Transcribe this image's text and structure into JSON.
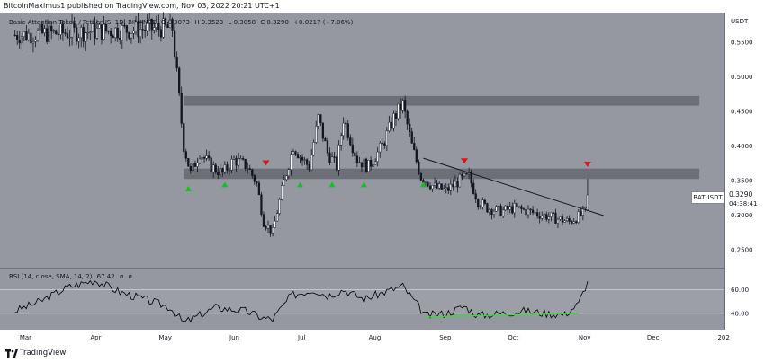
{
  "header": {
    "publish_line": "BitcoinMaximus1 published on TradingView.com, Nov 03, 2022 20:21 UTC+1"
  },
  "legend": {
    "symbol": "Basic Attention Token / TetherUS, 1D, BINANCE",
    "o": "O 0.3073",
    "h": "H 0.3523",
    "l": "L 0.3058",
    "c": "C 0.3290",
    "chg": "+0.0217 (+7.06%)"
  },
  "rsi_legend": {
    "name": "RSI (14, close, SMA, 14, 2)",
    "v1": "67.42",
    "v2": "ø",
    "v3": "ø"
  },
  "axis": {
    "currency": "USDT",
    "price_labels": [
      "0.5500",
      "0.5000",
      "0.4500",
      "0.4000",
      "0.3500",
      "0.3000",
      "0.2500"
    ],
    "rsi_labels": [
      "60.00",
      "40.00"
    ],
    "month_labels": [
      "Mar",
      "Apr",
      "May",
      "Jun",
      "Jul",
      "Aug",
      "Sep",
      "Oct",
      "Nov",
      "Dec",
      "202"
    ]
  },
  "price_tag": {
    "symbol": "BATUSDT",
    "last": "0.3290",
    "countdown": "04:38:41"
  },
  "footer": {
    "brand": "TradingView"
  },
  "colors": {
    "background": "#9598a1",
    "candle": "#131722",
    "zone": "#5f6168",
    "arrow_down": "#d8151b",
    "arrow_up": "#10c21f",
    "rsi_line": "#000000",
    "divergence": "#2fe62a"
  },
  "chart_data": {
    "type": "candlestick",
    "title": "Basic Attention Token / TetherUS, 1D, BINANCE",
    "price_ylim": [
      0.225,
      0.59
    ],
    "rsi_ylim": [
      27,
      77
    ],
    "resistance_zones": [
      [
        0.458,
        0.472
      ],
      [
        0.352,
        0.367
      ]
    ],
    "descending_trendline": [
      {
        "date": "2022-08-23",
        "price": 0.382
      },
      {
        "date": "2022-11-10",
        "price": 0.299
      }
    ],
    "markers_down": [
      {
        "date": "2022-06-15",
        "price": 0.375
      },
      {
        "date": "2022-09-10",
        "price": 0.378
      },
      {
        "date": "2022-11-03",
        "price": 0.373
      }
    ],
    "markers_up": [
      {
        "date": "2022-05-12",
        "price": 0.338
      },
      {
        "date": "2022-05-28",
        "price": 0.344
      },
      {
        "date": "2022-06-30",
        "price": 0.344
      },
      {
        "date": "2022-07-14",
        "price": 0.344
      },
      {
        "date": "2022-07-28",
        "price": 0.344
      },
      {
        "date": "2022-08-23",
        "price": 0.344
      }
    ],
    "price_anchors": [
      [
        "2022-02-25",
        0.56
      ],
      [
        "2022-04-30",
        0.57
      ],
      [
        "2022-05-05",
        0.57
      ],
      [
        "2022-05-10",
        0.4
      ],
      [
        "2022-05-13",
        0.36
      ],
      [
        "2022-05-17",
        0.39
      ],
      [
        "2022-05-22",
        0.37
      ],
      [
        "2022-05-27",
        0.36
      ],
      [
        "2022-06-01",
        0.38
      ],
      [
        "2022-06-07",
        0.37
      ],
      [
        "2022-06-11",
        0.345
      ],
      [
        "2022-06-14",
        0.29
      ],
      [
        "2022-06-18",
        0.275
      ],
      [
        "2022-06-22",
        0.335
      ],
      [
        "2022-06-27",
        0.4
      ],
      [
        "2022-07-01",
        0.38
      ],
      [
        "2022-07-04",
        0.37
      ],
      [
        "2022-07-08",
        0.44
      ],
      [
        "2022-07-12",
        0.39
      ],
      [
        "2022-07-16",
        0.37
      ],
      [
        "2022-07-19",
        0.44
      ],
      [
        "2022-07-25",
        0.38
      ],
      [
        "2022-07-30",
        0.37
      ],
      [
        "2022-08-05",
        0.4
      ],
      [
        "2022-08-10",
        0.44
      ],
      [
        "2022-08-14",
        0.46
      ],
      [
        "2022-08-18",
        0.4
      ],
      [
        "2022-08-22",
        0.355
      ],
      [
        "2022-08-28",
        0.34
      ],
      [
        "2022-09-02",
        0.335
      ],
      [
        "2022-09-08",
        0.35
      ],
      [
        "2022-09-12",
        0.355
      ],
      [
        "2022-09-16",
        0.32
      ],
      [
        "2022-09-20",
        0.31
      ],
      [
        "2022-09-26",
        0.305
      ],
      [
        "2022-10-02",
        0.31
      ],
      [
        "2022-10-08",
        0.305
      ],
      [
        "2022-10-14",
        0.3
      ],
      [
        "2022-10-20",
        0.295
      ],
      [
        "2022-10-26",
        0.29
      ],
      [
        "2022-10-31",
        0.3
      ],
      [
        "2022-11-02",
        0.305
      ],
      [
        "2022-11-03",
        0.329
      ]
    ],
    "rsi_anchors": [
      [
        "2022-02-25",
        42
      ],
      [
        "2022-03-08",
        50
      ],
      [
        "2022-03-20",
        62
      ],
      [
        "2022-04-01",
        68
      ],
      [
        "2022-04-12",
        58
      ],
      [
        "2022-04-26",
        50
      ],
      [
        "2022-05-04",
        45
      ],
      [
        "2022-05-10",
        32
      ],
      [
        "2022-05-24",
        45
      ],
      [
        "2022-06-06",
        42
      ],
      [
        "2022-06-14",
        36
      ],
      [
        "2022-06-18",
        35
      ],
      [
        "2022-06-26",
        55
      ],
      [
        "2022-07-06",
        60
      ],
      [
        "2022-07-12",
        55
      ],
      [
        "2022-07-19",
        60
      ],
      [
        "2022-07-28",
        52
      ],
      [
        "2022-08-06",
        58
      ],
      [
        "2022-08-14",
        63
      ],
      [
        "2022-08-20",
        48
      ],
      [
        "2022-08-24",
        38
      ],
      [
        "2022-09-02",
        40
      ],
      [
        "2022-09-10",
        46
      ],
      [
        "2022-09-16",
        38
      ],
      [
        "2022-09-26",
        40
      ],
      [
        "2022-10-06",
        42
      ],
      [
        "2022-10-16",
        40
      ],
      [
        "2022-10-24",
        39
      ],
      [
        "2022-10-30",
        48
      ],
      [
        "2022-11-03",
        67
      ]
    ],
    "rsi_divergence": [
      {
        "date": "2022-08-24",
        "rsi": 37
      },
      {
        "date": "2022-10-30",
        "rsi": 40
      }
    ],
    "rsi_band": [
      40,
      60
    ],
    "x_range": [
      "2022-02-20",
      "2023-01-02"
    ]
  }
}
